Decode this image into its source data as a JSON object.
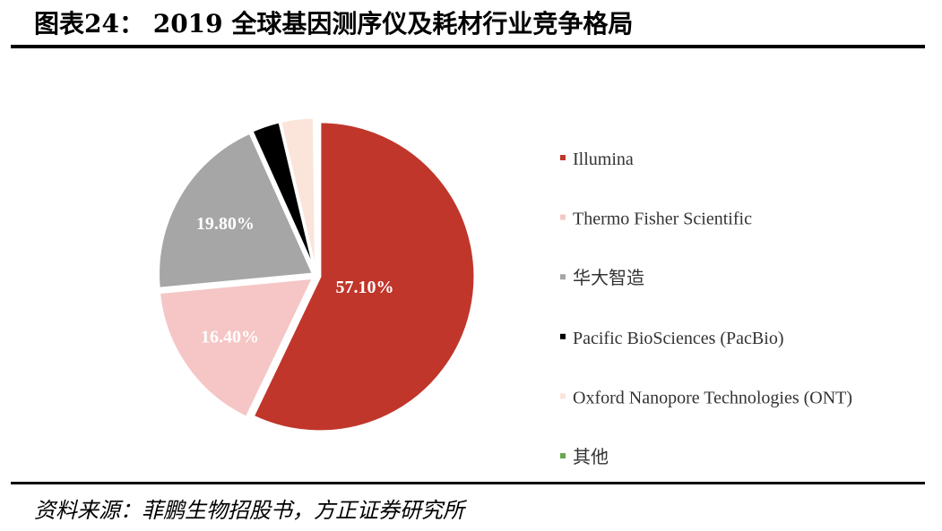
{
  "chart_data": {
    "type": "pie",
    "title": "图表24：  2019 全球基因测序仪及耗材行业竞争格局",
    "source": "资料来源：菲鹏生物招股书，方正证券研究所",
    "categories": [
      "Illumina",
      "Thermo Fisher Scientific",
      "华大智造",
      "Pacific BioSciences (PacBio)",
      "Oxford Nanopore Technologies (ONT)",
      "其他"
    ],
    "values": [
      57.1,
      16.4,
      19.8,
      3.0,
      3.5,
      0.2
    ],
    "value_labels": [
      "57.10%",
      "16.40%",
      "19.80%",
      null,
      null,
      null
    ],
    "colors": [
      "#c0362b",
      "#f5c6c5",
      "#a6a6a6",
      "#000000",
      "#fbe4d9",
      "#6aa84f"
    ],
    "legend": "right"
  }
}
